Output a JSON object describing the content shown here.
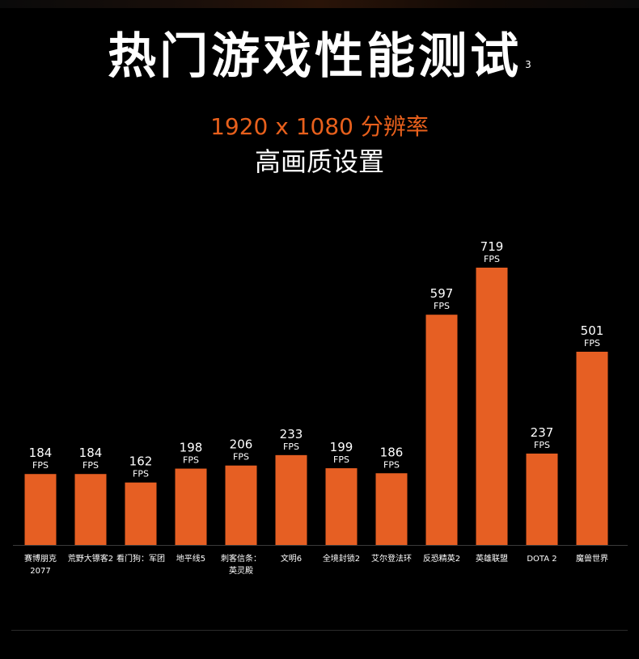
{
  "header": {
    "title": "热门游戏性能测试",
    "footnote": "3",
    "resolution": "1920 x 1080 分辨率",
    "quality": "高画质设置"
  },
  "colors": {
    "bar": "#e65f23",
    "accent": "#e8601c",
    "background": "#000000",
    "text": "#ffffff"
  },
  "chart_data": {
    "type": "bar",
    "categories": [
      "赛博朋克 2077",
      "荒野大镖客2",
      "看门狗：军团",
      "地平线5",
      "刺客信条：英灵殿",
      "文明6",
      "全境封锁2",
      "艾尔登法环",
      "反恐精英2",
      "英雄联盟",
      "DOTA 2",
      "魔兽世界"
    ],
    "category_lines": [
      [
        "赛博朋克",
        "2077"
      ],
      [
        "荒野大镖客2"
      ],
      [
        "看门狗：军团"
      ],
      [
        "地平线5"
      ],
      [
        "刺客信条：",
        "英灵殿"
      ],
      [
        "文明6"
      ],
      [
        "全境封锁2"
      ],
      [
        "艾尔登法环"
      ],
      [
        "反恐精英2"
      ],
      [
        "英雄联盟"
      ],
      [
        "DOTA 2"
      ],
      [
        "魔兽世界"
      ]
    ],
    "values": [
      184,
      184,
      162,
      198,
      206,
      233,
      199,
      186,
      597,
      719,
      237,
      501
    ],
    "unit_label": "FPS",
    "ylim": [
      0,
      719
    ],
    "grid": false,
    "legend": "none"
  }
}
